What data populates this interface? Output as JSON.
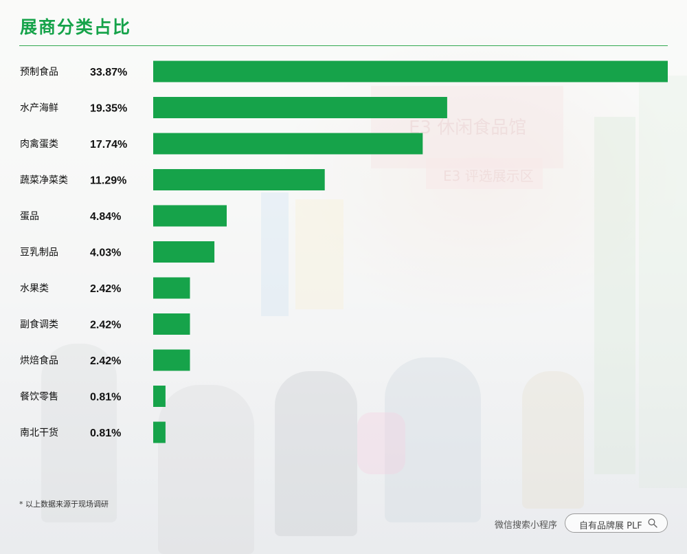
{
  "title": "展商分类占比",
  "colors": {
    "accent": "#16a34a",
    "bar": "#16a34a",
    "text": "#111111"
  },
  "chart_data": {
    "type": "bar",
    "orientation": "horizontal",
    "title": "展商分类占比",
    "value_unit": "%",
    "xlim": [
      0,
      33.87
    ],
    "grid": false,
    "legend": "none",
    "categories": [
      "预制食品",
      "水产海鲜",
      "肉禽蛋类",
      "蔬菜净菜类",
      "蛋品",
      "豆乳制品",
      "水果类",
      "副食调类",
      "烘焙食品",
      "餐饮零售",
      "南北干货"
    ],
    "values": [
      33.87,
      19.35,
      17.74,
      11.29,
      4.84,
      4.03,
      2.42,
      2.42,
      2.42,
      0.81,
      0.81
    ],
    "value_labels": [
      "33.87%",
      "19.35%",
      "17.74%",
      "11.29%",
      "4.84%",
      "4.03%",
      "2.42%",
      "2.42%",
      "2.42%",
      "0.81%",
      "0.81%"
    ]
  },
  "footnote": "* 以上数据来源于现场调研",
  "mini_program_label": "微信搜索小程序",
  "search_pill": {
    "text": "自有品牌展 PLF",
    "icon": "search-icon"
  }
}
